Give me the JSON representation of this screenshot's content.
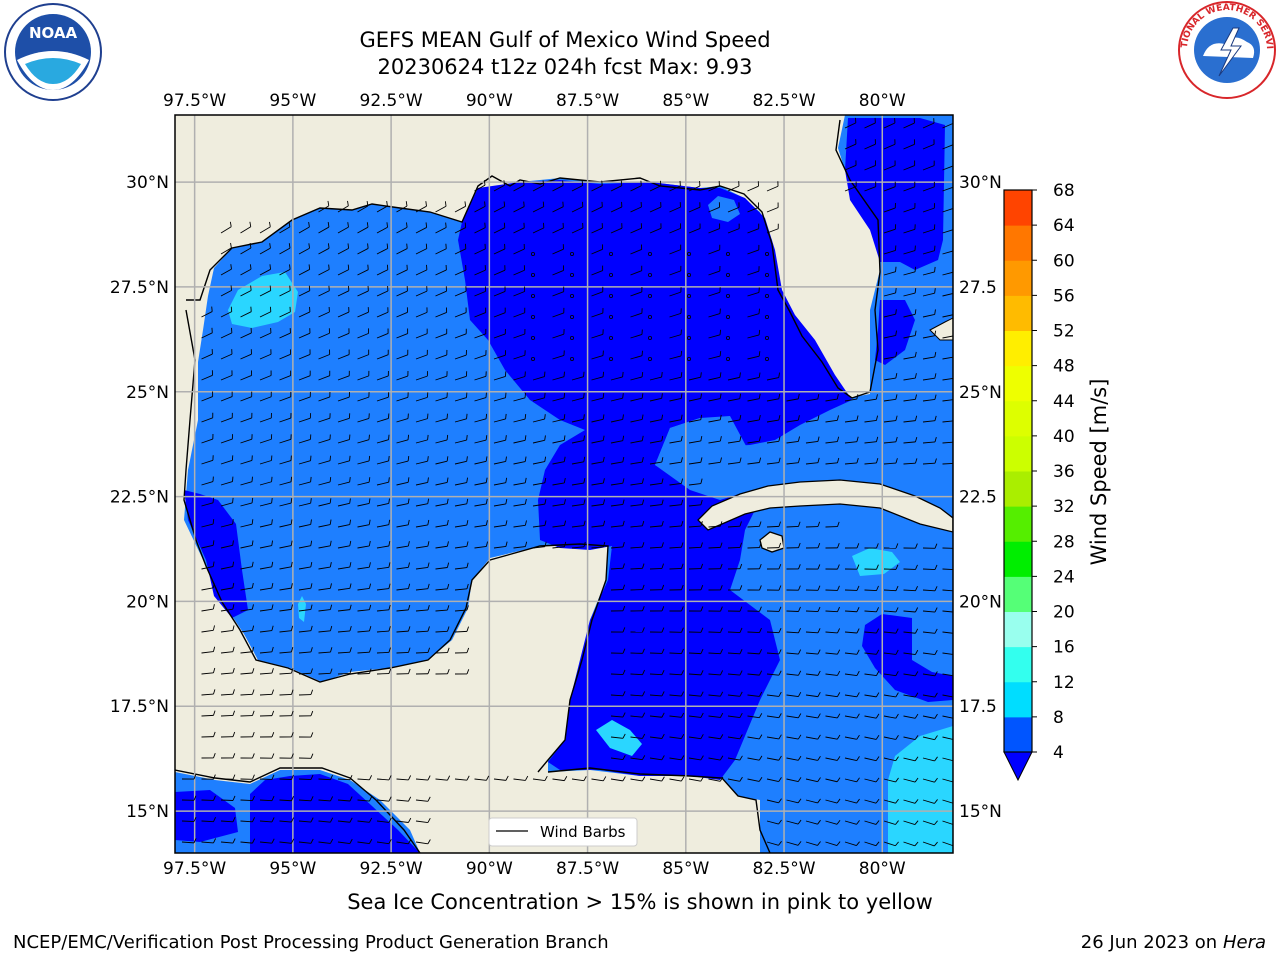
{
  "title_line1": "GEFS MEAN Gulf of Mexico Wind Speed",
  "title_line2": "20230624 t12z 024h fcst   Max: 9.93",
  "lon_ticks": [
    "97.5°W",
    "95°W",
    "92.5°W",
    "90°W",
    "87.5°W",
    "85°W",
    "82.5°W",
    "80°W"
  ],
  "lon_values": [
    -97.5,
    -95,
    -92.5,
    -90,
    -87.5,
    -85,
    -82.5,
    -80
  ],
  "lat_ticks_left": [
    "30°N",
    "27.5°N",
    "25°N",
    "22.5°N",
    "20°N",
    "17.5°N",
    "15°N"
  ],
  "lat_ticks_right": [
    "30°N",
    "27.5",
    "25°N",
    "22.5",
    "20°N",
    "17.5",
    "15°N"
  ],
  "lat_values": [
    30,
    27.5,
    25,
    22.5,
    20,
    17.5,
    15
  ],
  "map_extent": {
    "lon": [
      -98,
      -78.2
    ],
    "lat": [
      14,
      31.6
    ]
  },
  "legend_label": "Wind Barbs",
  "colorbar": {
    "label": "Wind Speed [m/s]",
    "ticks": [
      "68",
      "64",
      "60",
      "56",
      "52",
      "48",
      "44",
      "40",
      "36",
      "32",
      "28",
      "24",
      "20",
      "16",
      "12",
      "8",
      "4"
    ],
    "levels": [
      4,
      8,
      12,
      16,
      20,
      24,
      28,
      32,
      36,
      40,
      44,
      48,
      52,
      56,
      60,
      64,
      68
    ],
    "colors": [
      "#0055ff",
      "#00ddff",
      "#33ffee",
      "#99ffee",
      "#55ff77",
      "#00ee00",
      "#55ee00",
      "#aaee00",
      "#ccff00",
      "#ddff00",
      "#eeff00",
      "#ffee00",
      "#ffbb00",
      "#ff9900",
      "#ff7700",
      "#ff4400",
      "#ff0000"
    ],
    "under_color": "#0000ff"
  },
  "colors": {
    "land": "#efedde",
    "level_lt4": "#0000ff",
    "level_4_8": "#1e7fff",
    "level_8_12": "#2ad6ff",
    "level_12_16": "#33ffee",
    "grid": "#b0b0b0"
  },
  "footnote": "Sea Ice Concentration > 15% is shown in pink to yellow",
  "credit_left": "NCEP/EMC/Verification Post Processing Product Generation Branch",
  "credit_date": "26 Jun 2023 on",
  "credit_host": "Hera",
  "logos": {
    "left": "NOAA",
    "right": "NATIONAL WEATHER SERVICE"
  }
}
